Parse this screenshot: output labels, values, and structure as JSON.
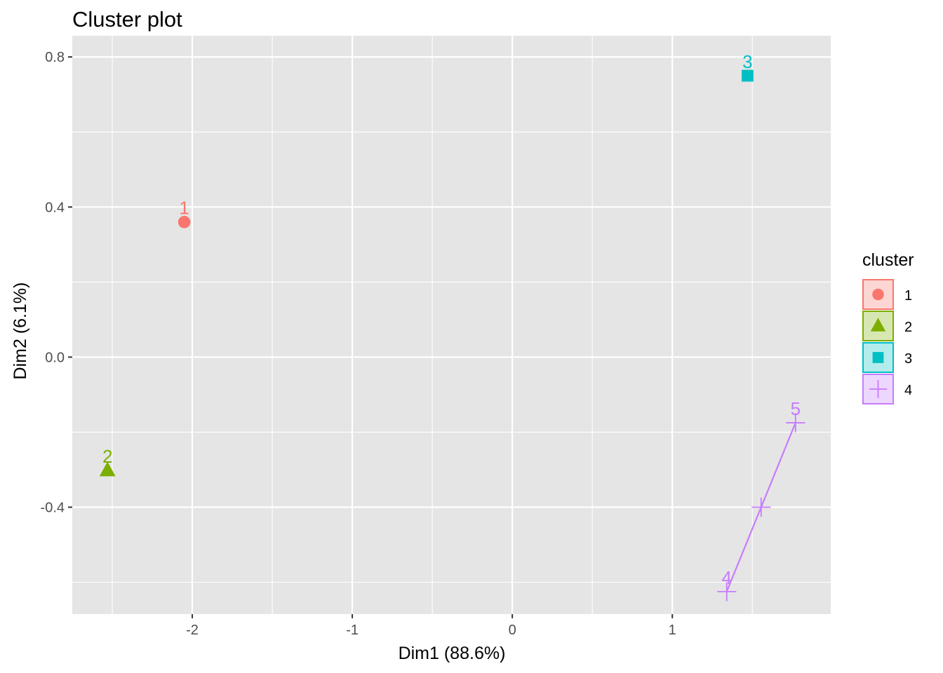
{
  "chart_data": {
    "type": "scatter",
    "title": "Cluster plot",
    "xlabel": "Dim1 (88.6%)",
    "ylabel": "Dim2 (6.1%)",
    "xlim": [
      -2.75,
      1.99
    ],
    "ylim": [
      -0.685,
      0.8565
    ],
    "x_ticks": [
      -2,
      -1,
      0,
      1
    ],
    "x_tick_labels": [
      "-2",
      "-1",
      "0",
      "1"
    ],
    "y_ticks": [
      -0.4,
      0.0,
      0.4,
      0.8
    ],
    "y_tick_labels": [
      "-0.4",
      "0.0",
      "0.4",
      "0.8"
    ],
    "grid": true,
    "background": "#e5e5e5",
    "legend": {
      "title": "cluster",
      "position": "right",
      "entries": [
        "1",
        "2",
        "3",
        "4"
      ]
    },
    "clusters": [
      {
        "name": "1",
        "color": "#F8766D",
        "shape": "circle"
      },
      {
        "name": "2",
        "color": "#7CAE00",
        "shape": "triangle"
      },
      {
        "name": "3",
        "color": "#00BFC4",
        "shape": "square"
      },
      {
        "name": "4",
        "color": "#C77CFF",
        "shape": "cross"
      }
    ],
    "points": [
      {
        "label": "1",
        "cluster": "1",
        "x": -2.05,
        "y": 0.36
      },
      {
        "label": "2",
        "cluster": "2",
        "x": -2.53,
        "y": -0.302
      },
      {
        "label": "3",
        "cluster": "3",
        "x": 1.47,
        "y": 0.75
      },
      {
        "label": "4",
        "cluster": "4",
        "x": 1.34,
        "y": -0.625
      },
      {
        "label": "5",
        "cluster": "4",
        "x": 1.77,
        "y": -0.175
      }
    ],
    "centroids": [
      {
        "cluster": "4",
        "x": 1.555,
        "y": -0.4
      }
    ],
    "hulls": [
      {
        "cluster": "4",
        "from": "4",
        "to": "5"
      }
    ]
  }
}
